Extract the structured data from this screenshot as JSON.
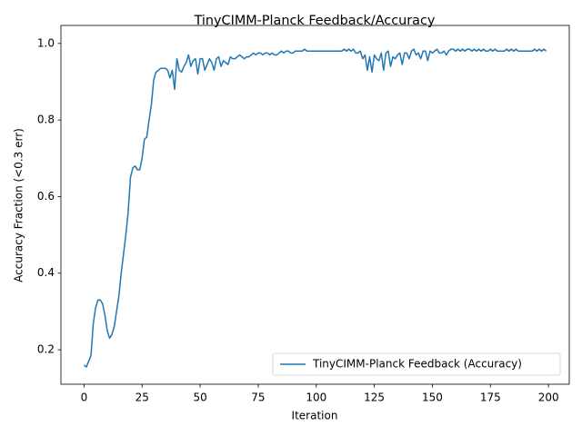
{
  "chart_data": {
    "type": "line",
    "title": "TinyCIMM-Planck Feedback/Accuracy",
    "xlabel": "Iteration",
    "ylabel": "Accuracy Fraction (<0.3 err)",
    "xlim": [
      -9.95,
      208.95
    ],
    "ylim": [
      0.11,
      1.047
    ],
    "xticks": [
      0,
      25,
      50,
      75,
      100,
      125,
      150,
      175,
      200
    ],
    "yticks": [
      0.2,
      0.4,
      0.6,
      0.8,
      {
        "value": 1,
        "label": "1.0"
      }
    ],
    "legend": "lower right",
    "x": [
      0,
      1,
      2,
      3,
      4,
      5,
      6,
      7,
      8,
      9,
      10,
      11,
      12,
      13,
      14,
      15,
      16,
      17,
      18,
      19,
      20,
      21,
      22,
      23,
      24,
      25,
      26,
      27,
      28,
      29,
      30,
      31,
      32,
      33,
      34,
      35,
      36,
      37,
      38,
      39,
      40,
      41,
      42,
      43,
      44,
      45,
      46,
      47,
      48,
      49,
      50,
      51,
      52,
      53,
      54,
      55,
      56,
      57,
      58,
      59,
      60,
      61,
      62,
      63,
      64,
      65,
      66,
      67,
      68,
      69,
      70,
      71,
      72,
      73,
      74,
      75,
      76,
      77,
      78,
      79,
      80,
      81,
      82,
      83,
      84,
      85,
      86,
      87,
      88,
      89,
      90,
      91,
      92,
      93,
      94,
      95,
      96,
      97,
      98,
      99,
      100,
      101,
      102,
      103,
      104,
      105,
      106,
      107,
      108,
      109,
      110,
      111,
      112,
      113,
      114,
      115,
      116,
      117,
      118,
      119,
      120,
      121,
      122,
      123,
      124,
      125,
      126,
      127,
      128,
      129,
      130,
      131,
      132,
      133,
      134,
      135,
      136,
      137,
      138,
      139,
      140,
      141,
      142,
      143,
      144,
      145,
      146,
      147,
      148,
      149,
      150,
      151,
      152,
      153,
      154,
      155,
      156,
      157,
      158,
      159,
      160,
      161,
      162,
      163,
      164,
      165,
      166,
      167,
      168,
      169,
      170,
      171,
      172,
      173,
      174,
      175,
      176,
      177,
      178,
      179,
      180,
      181,
      182,
      183,
      184,
      185,
      186,
      187,
      188,
      189,
      190,
      191,
      192,
      193,
      194,
      195,
      196,
      197,
      198,
      199
    ],
    "series": [
      {
        "name": "TinyCIMM-Planck Feedback (Accuracy)",
        "color": "#1f77b4",
        "values": [
          0.16,
          0.155,
          0.17,
          0.185,
          0.27,
          0.31,
          0.33,
          0.33,
          0.32,
          0.29,
          0.25,
          0.23,
          0.24,
          0.26,
          0.3,
          0.34,
          0.4,
          0.45,
          0.5,
          0.56,
          0.65,
          0.675,
          0.68,
          0.67,
          0.67,
          0.7,
          0.75,
          0.755,
          0.8,
          0.84,
          0.905,
          0.925,
          0.93,
          0.935,
          0.935,
          0.935,
          0.93,
          0.91,
          0.93,
          0.88,
          0.96,
          0.93,
          0.925,
          0.94,
          0.95,
          0.97,
          0.94,
          0.955,
          0.96,
          0.92,
          0.96,
          0.96,
          0.93,
          0.945,
          0.96,
          0.95,
          0.93,
          0.96,
          0.965,
          0.94,
          0.955,
          0.95,
          0.945,
          0.965,
          0.96,
          0.96,
          0.965,
          0.97,
          0.965,
          0.96,
          0.965,
          0.965,
          0.97,
          0.975,
          0.97,
          0.975,
          0.975,
          0.97,
          0.975,
          0.975,
          0.97,
          0.975,
          0.97,
          0.97,
          0.975,
          0.98,
          0.975,
          0.98,
          0.98,
          0.975,
          0.975,
          0.98,
          0.98,
          0.98,
          0.98,
          0.985,
          0.98,
          0.98,
          0.98,
          0.98,
          0.98,
          0.98,
          0.98,
          0.98,
          0.98,
          0.98,
          0.98,
          0.98,
          0.98,
          0.98,
          0.98,
          0.98,
          0.985,
          0.98,
          0.985,
          0.98,
          0.985,
          0.975,
          0.975,
          0.98,
          0.96,
          0.97,
          0.93,
          0.965,
          0.925,
          0.97,
          0.96,
          0.955,
          0.975,
          0.93,
          0.975,
          0.98,
          0.94,
          0.965,
          0.96,
          0.97,
          0.975,
          0.945,
          0.975,
          0.975,
          0.96,
          0.98,
          0.985,
          0.97,
          0.975,
          0.96,
          0.98,
          0.98,
          0.955,
          0.98,
          0.975,
          0.98,
          0.985,
          0.975,
          0.975,
          0.98,
          0.97,
          0.98,
          0.985,
          0.985,
          0.98,
          0.985,
          0.98,
          0.985,
          0.98,
          0.985,
          0.985,
          0.98,
          0.985,
          0.98,
          0.985,
          0.98,
          0.985,
          0.98,
          0.98,
          0.985,
          0.98,
          0.985,
          0.98,
          0.98,
          0.98,
          0.98,
          0.985,
          0.98,
          0.985,
          0.98,
          0.985,
          0.98,
          0.98,
          0.98,
          0.98,
          0.98,
          0.98,
          0.98,
          0.985,
          0.98,
          0.985,
          0.98,
          0.985,
          0.98
        ]
      }
    ]
  }
}
